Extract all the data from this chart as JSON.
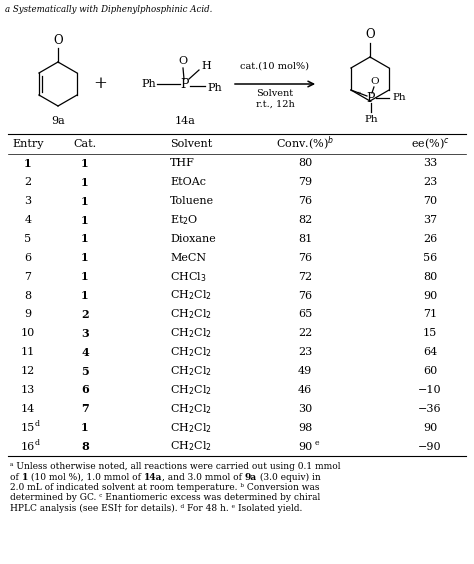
{
  "col_headers": [
    "Entry",
    "Cat.",
    "Solvent",
    "Conv.(%)^b",
    "ee(%)^c"
  ],
  "rows": [
    {
      "entry": "1",
      "cat": "1",
      "solvent": "THF",
      "conv": "80",
      "ee": "33"
    },
    {
      "entry": "2",
      "cat": "1",
      "solvent": "EtOAc",
      "conv": "79",
      "ee": "23"
    },
    {
      "entry": "3",
      "cat": "1",
      "solvent": "Toluene",
      "conv": "76",
      "ee": "70"
    },
    {
      "entry": "4",
      "cat": "1",
      "solvent": "Et$_2$O",
      "conv": "82",
      "ee": "37"
    },
    {
      "entry": "5",
      "cat": "1",
      "solvent": "Dioxane",
      "conv": "81",
      "ee": "26"
    },
    {
      "entry": "6",
      "cat": "1",
      "solvent": "MeCN",
      "conv": "76",
      "ee": "56"
    },
    {
      "entry": "7",
      "cat": "1",
      "solvent": "CHCl$_3$",
      "conv": "72",
      "ee": "80"
    },
    {
      "entry": "8",
      "cat": "1",
      "solvent": "CH$_2$Cl$_2$",
      "conv": "76",
      "ee": "90"
    },
    {
      "entry": "9",
      "cat": "2",
      "solvent": "CH$_2$Cl$_2$",
      "conv": "65",
      "ee": "71"
    },
    {
      "entry": "10",
      "cat": "3",
      "solvent": "CH$_2$Cl$_2$",
      "conv": "22",
      "ee": "15"
    },
    {
      "entry": "11",
      "cat": "4",
      "solvent": "CH$_2$Cl$_2$",
      "conv": "23",
      "ee": "64"
    },
    {
      "entry": "12",
      "cat": "5",
      "solvent": "CH$_2$Cl$_2$",
      "conv": "49",
      "ee": "60"
    },
    {
      "entry": "13",
      "cat": "6",
      "solvent": "CH$_2$Cl$_2$",
      "conv": "46",
      "ee": "−10"
    },
    {
      "entry": "14",
      "cat": "7",
      "solvent": "CH$_2$Cl$_2$",
      "conv": "30",
      "ee": "−36"
    },
    {
      "entry": "15^d",
      "cat": "1",
      "solvent": "CH$_2$Cl$_2$",
      "conv": "98",
      "ee": "90"
    },
    {
      "entry": "16^d",
      "cat": "8",
      "solvent": "CH$_2$Cl$_2$",
      "conv": "90^e",
      "ee": "−90"
    }
  ],
  "bold_entry_rows": [
    0
  ],
  "footnote_lines": [
    "^a Unless otherwise noted, all reactions were carried out using 0.1 mmol",
    "of **1** (10 mol %), 1.0 mmol of **14a**, and 3.0 mmol of **9a** (3.0 equiv) in",
    "2.0 mL of indicated solvent at room temperature. ^b Conversion was",
    "determined by GC. ^c Enantiomeric excess was determined by chiral",
    "HPLC analysis (see ESI† for details). ^d For 48 h. ^e Isolated yield."
  ],
  "bg_color": "#ffffff",
  "text_color": "#000000"
}
